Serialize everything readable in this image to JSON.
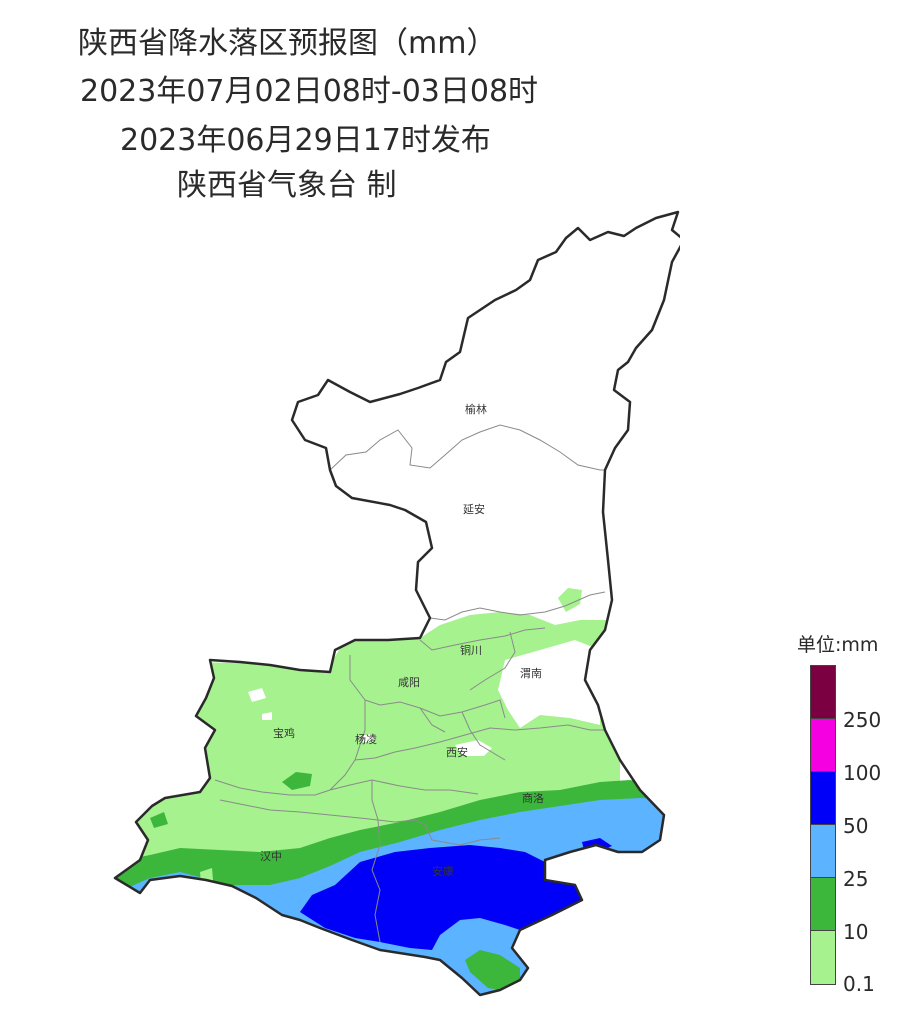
{
  "title": {
    "line1": "陕西省降水落区预报图（mm）",
    "line2": "2023年07月02日08时-03日08时",
    "line3": "2023年06月29日17时发布",
    "line4": "陕西省气象台 制"
  },
  "map": {
    "cities": [
      {
        "key": "yulin",
        "name": "榆林"
      },
      {
        "key": "yanan",
        "name": "延安"
      },
      {
        "key": "tongchuan",
        "name": "铜川"
      },
      {
        "key": "xianyang",
        "name": "咸阳"
      },
      {
        "key": "weinan",
        "name": "渭南"
      },
      {
        "key": "baoji",
        "name": "宝鸡"
      },
      {
        "key": "yangling",
        "name": "杨凌"
      },
      {
        "key": "xian",
        "name": "西安"
      },
      {
        "key": "shangluo",
        "name": "商洛"
      },
      {
        "key": "hanzhong",
        "name": "汉中"
      },
      {
        "key": "ankang",
        "name": "安康"
      }
    ]
  },
  "legend": {
    "title": "单位:mm",
    "swatches": [
      {
        "color": "#7b0041"
      },
      {
        "color": "#f500e0"
      },
      {
        "color": "#0000f8"
      },
      {
        "color": "#5cb3ff"
      },
      {
        "color": "#3cb73c"
      },
      {
        "color": "#a6f28f"
      }
    ],
    "ticks": [
      "250",
      "100",
      "50",
      "25",
      "10",
      "0.1"
    ]
  }
}
